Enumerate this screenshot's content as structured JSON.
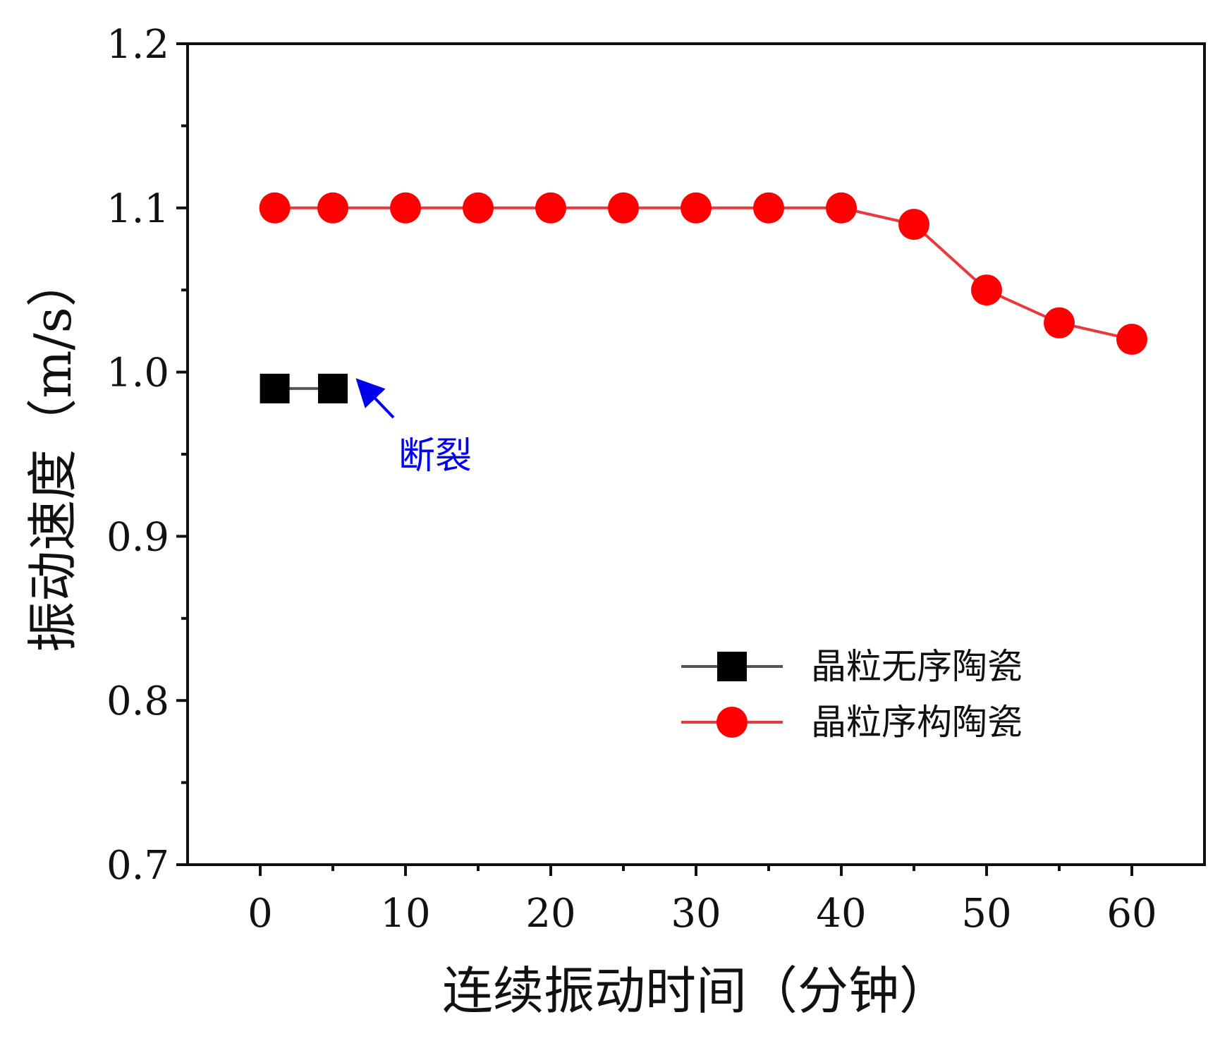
{
  "chart_data": {
    "type": "line",
    "xlabel": "连续振动时间（分钟）",
    "ylabel": "振动速度（m/s）",
    "xlim": [
      -5,
      65
    ],
    "ylim": [
      0.7,
      1.2
    ],
    "x_ticks": [
      0,
      10,
      20,
      30,
      40,
      50,
      60
    ],
    "x_minor_ticks": [
      5,
      15,
      25,
      35,
      45,
      55
    ],
    "y_ticks": [
      "0.7",
      "0.8",
      "0.9",
      "1.0",
      "1.1",
      "1.2"
    ],
    "y_minor_ticks": [
      0.75,
      0.85,
      0.95,
      1.05,
      1.15
    ],
    "series": [
      {
        "name": "晶粒无序陶瓷",
        "marker": "square",
        "line_color": "#555555",
        "marker_color": "#000000",
        "x": [
          1,
          5
        ],
        "values": [
          0.99,
          0.99
        ]
      },
      {
        "name": "晶粒序构陶瓷",
        "marker": "circle",
        "line_color": "#e8393e",
        "marker_color": "#ff0000",
        "x": [
          1,
          5,
          10,
          15,
          20,
          25,
          30,
          35,
          40,
          45,
          50,
          55,
          60
        ],
        "values": [
          1.1,
          1.1,
          1.1,
          1.1,
          1.1,
          1.1,
          1.1,
          1.1,
          1.1,
          1.09,
          1.05,
          1.03,
          1.02
        ]
      }
    ],
    "annotation": {
      "text": "断裂",
      "color": "#0000ee",
      "points_to_x": 5,
      "points_to_y": 0.99
    },
    "legend": {
      "placement": "bottom-right"
    }
  }
}
